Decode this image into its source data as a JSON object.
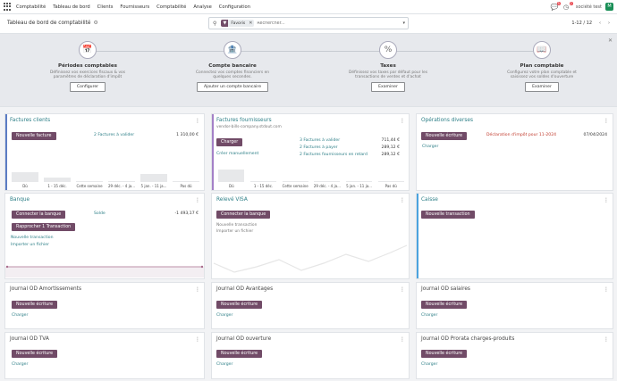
{
  "app": {
    "name": "Comptabilité",
    "menu": [
      "Tableau de bord",
      "Clients",
      "Fournisseurs",
      "Comptabilité",
      "Analyse",
      "Configuration"
    ],
    "chat_badge": "5",
    "activity_badge": "2",
    "company": "société test",
    "avatar_initial": "M"
  },
  "control": {
    "title": "Tableau de bord de comptabilité",
    "filter_label": "Favoris",
    "search_placeholder": "Rechercher...",
    "pager": "1-12 / 12"
  },
  "onboarding": [
    {
      "title": "Périodes comptables",
      "desc1": "Définissez vos exercices fiscaux & vos",
      "desc2": "paramètres de déclaration d'impôt",
      "button": "Configurer",
      "icon": "calendar-icon"
    },
    {
      "title": "Compte bancaire",
      "desc1": "Connectez vos comptes financiers en",
      "desc2": "quelques secondes.",
      "button": "Ajouter un compte bancaire",
      "icon": "bank-icon"
    },
    {
      "title": "Taxes",
      "desc1": "Définissez vos taxes par défaut pour les",
      "desc2": "transactions de ventes et d'achat",
      "button": "Examiner",
      "icon": "percent-icon"
    },
    {
      "title": "Plan comptable",
      "desc1": "Configurez votre plan comptable et",
      "desc2": "saisissez vos soldes d'ouverture",
      "button": "Examiner",
      "icon": "book-icon"
    }
  ],
  "cards": {
    "clients": {
      "title": "Factures clients",
      "button": "Nouvelle facture",
      "link": "2 Factures à valider",
      "amount": "1 310,00 €",
      "bars": [
        {
          "label": "Dû",
          "value": 0.4
        },
        {
          "label": "1 - 15 déc.",
          "value": 0.18
        },
        {
          "label": "Cette semaine",
          "value": 0.05
        },
        {
          "label": "29 déc. - 4 ja...",
          "value": 0.05
        },
        {
          "label": "5 jan. - 11 ja...",
          "value": 0.35
        },
        {
          "label": "Pas dû",
          "value": 0.05
        }
      ]
    },
    "fournisseurs": {
      "title": "Factures fournisseurs",
      "email": "vendor-bills-company.stdout.com",
      "button": "Charger",
      "link": "Créer manuellement",
      "rows": [
        {
          "label": "3 Factures à valider",
          "amount": "711,44 €"
        },
        {
          "label": "2 Factures à payer",
          "amount": "289,12 €"
        },
        {
          "label": "2 Factures fournisseurs en retard",
          "amount": "289,12 €"
        }
      ],
      "bars": [
        {
          "label": "Dû",
          "value": 0.55
        },
        {
          "label": "1 - 15 déc.",
          "value": 0.05
        },
        {
          "label": "Cette semaine",
          "value": 0.05
        },
        {
          "label": "29 déc. - 4 ja...",
          "value": 0.05
        },
        {
          "label": "5 jan. - 11 ja...",
          "value": 0.05
        },
        {
          "label": "Pas dû",
          "value": 0.05
        }
      ]
    },
    "operations": {
      "title": "Opérations diverses",
      "button": "Nouvelle écriture",
      "link": "Charger",
      "warning": "Déclaration d'impôt pour 11-2024",
      "date": "07/04/2024"
    },
    "banque": {
      "title": "Banque",
      "button1": "Connecter la banque",
      "button2": "Rapprocher 1 Transaction",
      "solde_label": "Solde",
      "solde": "-1 493,17 €",
      "link1": "Nouvelle transaction",
      "link2": "Importer un fichier"
    },
    "visa": {
      "title": "Relevé VISA",
      "button": "Connecter la banque",
      "line1": "Nouvelle transaction",
      "line2": "Importer un fichier"
    },
    "caisse": {
      "title": "Caisse",
      "button": "Nouvelle transaction"
    },
    "small": [
      {
        "title": "Journal OD Amortissements",
        "button": "Nouvelle écriture",
        "link": "Charger"
      },
      {
        "title": "Journal OD Avantages",
        "button": "Nouvelle écriture",
        "link": "Charger"
      },
      {
        "title": "Journal OD salaires",
        "button": "Nouvelle écriture",
        "link": "Charger"
      },
      {
        "title": "Journal OD TVA",
        "button": "Nouvelle écriture",
        "link": "Charger"
      },
      {
        "title": "Journal OD ouverture",
        "button": "Nouvelle écriture",
        "link": "Charger"
      },
      {
        "title": "Journal OD Prorata charges-produits",
        "button": "Nouvelle écriture",
        "link": "Charger"
      }
    ]
  },
  "colors": {
    "primary": "#714b67",
    "link": "#2d7f87",
    "clients_bar": "#5b7cc4",
    "fournisseurs_bar": "#a480c7",
    "caisse_bar": "#4aa3df"
  }
}
